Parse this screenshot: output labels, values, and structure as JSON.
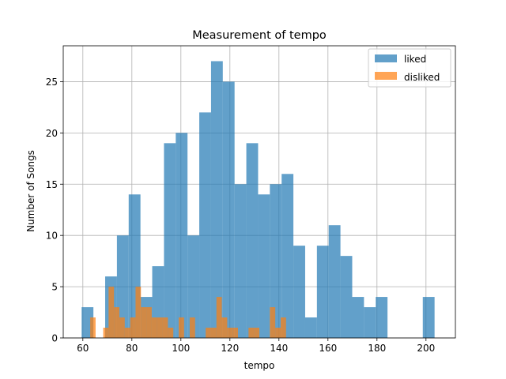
{
  "chart_data": {
    "type": "bar",
    "subtype": "overlapping-histogram",
    "title": "Measurement of tempo",
    "xlabel": "tempo",
    "ylabel": "Number of Songs",
    "xlim": [
      52,
      212
    ],
    "ylim": [
      0,
      28.5
    ],
    "xticks": [
      60,
      80,
      100,
      120,
      140,
      160,
      180,
      200
    ],
    "yticks": [
      0,
      5,
      10,
      15,
      20,
      25
    ],
    "grid": true,
    "legend_position": "top-right",
    "series": [
      {
        "name": "liked",
        "color": "#1f77b4",
        "opacity": 0.7,
        "bins": [
          {
            "x0": 59.5,
            "x1": 64.3,
            "count": 3
          },
          {
            "x0": 69.1,
            "x1": 73.9,
            "count": 6
          },
          {
            "x0": 73.9,
            "x1": 78.7,
            "count": 10
          },
          {
            "x0": 78.7,
            "x1": 83.5,
            "count": 14
          },
          {
            "x0": 83.5,
            "x1": 88.3,
            "count": 4
          },
          {
            "x0": 88.3,
            "x1": 93.1,
            "count": 7
          },
          {
            "x0": 93.1,
            "x1": 97.9,
            "count": 19
          },
          {
            "x0": 97.9,
            "x1": 102.7,
            "count": 20
          },
          {
            "x0": 102.7,
            "x1": 107.5,
            "count": 10
          },
          {
            "x0": 107.5,
            "x1": 112.3,
            "count": 22
          },
          {
            "x0": 112.3,
            "x1": 117.1,
            "count": 27
          },
          {
            "x0": 117.1,
            "x1": 121.9,
            "count": 25
          },
          {
            "x0": 121.9,
            "x1": 126.7,
            "count": 15
          },
          {
            "x0": 126.7,
            "x1": 131.5,
            "count": 19
          },
          {
            "x0": 131.5,
            "x1": 136.3,
            "count": 14
          },
          {
            "x0": 136.3,
            "x1": 141.1,
            "count": 15
          },
          {
            "x0": 141.1,
            "x1": 145.9,
            "count": 16
          },
          {
            "x0": 145.9,
            "x1": 150.7,
            "count": 9
          },
          {
            "x0": 150.7,
            "x1": 155.5,
            "count": 2
          },
          {
            "x0": 155.5,
            "x1": 160.3,
            "count": 9
          },
          {
            "x0": 160.3,
            "x1": 165.1,
            "count": 11
          },
          {
            "x0": 165.1,
            "x1": 169.9,
            "count": 8
          },
          {
            "x0": 169.9,
            "x1": 174.7,
            "count": 4
          },
          {
            "x0": 174.7,
            "x1": 179.5,
            "count": 3
          },
          {
            "x0": 179.5,
            "x1": 184.3,
            "count": 4
          },
          {
            "x0": 198.7,
            "x1": 203.5,
            "count": 4
          }
        ]
      },
      {
        "name": "disliked",
        "color": "#ff7f0e",
        "opacity": 0.7,
        "bins": [
          {
            "x0": 63.0,
            "x1": 65.2,
            "count": 2
          },
          {
            "x0": 68.3,
            "x1": 70.5,
            "count": 1
          },
          {
            "x0": 70.5,
            "x1": 72.7,
            "count": 5
          },
          {
            "x0": 72.7,
            "x1": 74.9,
            "count": 3
          },
          {
            "x0": 74.9,
            "x1": 77.1,
            "count": 2
          },
          {
            "x0": 77.1,
            "x1": 79.3,
            "count": 1
          },
          {
            "x0": 79.3,
            "x1": 81.5,
            "count": 2
          },
          {
            "x0": 81.5,
            "x1": 83.7,
            "count": 5
          },
          {
            "x0": 83.7,
            "x1": 85.9,
            "count": 3
          },
          {
            "x0": 85.9,
            "x1": 88.1,
            "count": 3
          },
          {
            "x0": 88.1,
            "x1": 90.3,
            "count": 2
          },
          {
            "x0": 90.3,
            "x1": 92.5,
            "count": 2
          },
          {
            "x0": 92.5,
            "x1": 94.7,
            "count": 2
          },
          {
            "x0": 94.7,
            "x1": 96.9,
            "count": 1
          },
          {
            "x0": 99.1,
            "x1": 101.3,
            "count": 2
          },
          {
            "x0": 103.6,
            "x1": 105.8,
            "count": 2
          },
          {
            "x0": 110.1,
            "x1": 112.3,
            "count": 1
          },
          {
            "x0": 112.3,
            "x1": 114.5,
            "count": 1
          },
          {
            "x0": 114.5,
            "x1": 116.7,
            "count": 4
          },
          {
            "x0": 116.7,
            "x1": 118.9,
            "count": 2
          },
          {
            "x0": 118.9,
            "x1": 121.1,
            "count": 1
          },
          {
            "x0": 121.1,
            "x1": 123.3,
            "count": 1
          },
          {
            "x0": 127.6,
            "x1": 129.8,
            "count": 1
          },
          {
            "x0": 129.8,
            "x1": 132.0,
            "count": 1
          },
          {
            "x0": 136.3,
            "x1": 138.5,
            "count": 3
          },
          {
            "x0": 138.5,
            "x1": 140.7,
            "count": 1
          },
          {
            "x0": 140.7,
            "x1": 142.9,
            "count": 2
          }
        ]
      }
    ]
  }
}
